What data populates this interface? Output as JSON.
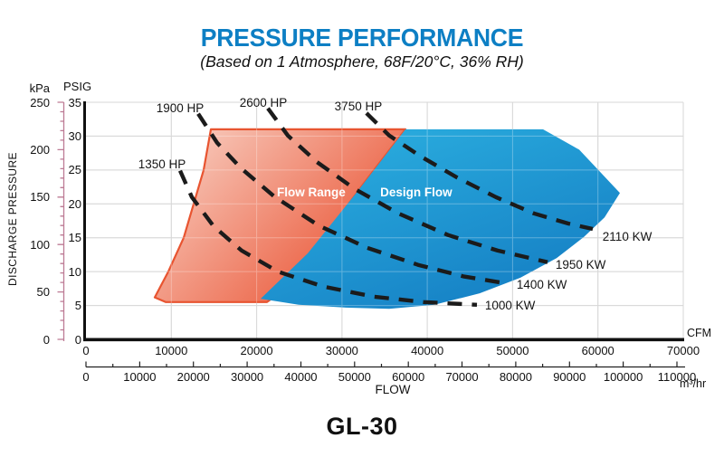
{
  "header": {
    "title": "PRESSURE PERFORMANCE",
    "subtitle": "(Based on 1 Atmosphere, 68F/20°C, 36% RH)",
    "model": "GL-30"
  },
  "colors": {
    "title_blue": "#0d7fc4",
    "flow_range_start": "#f9d7cb",
    "flow_range_end": "#ea5232",
    "flow_range_border": "#e85430",
    "design_flow_start": "#2db3e2",
    "design_flow_end": "#157fc4",
    "curve_dash": "#1b1b1b",
    "grid": "#c6c6c6",
    "kpa_ruler": "#bd7b95",
    "axis": "#111111"
  },
  "chart_data": {
    "type": "area",
    "title": "PRESSURE PERFORMANCE",
    "subtitle": "(Based on 1 Atmosphere, 68F/20°C, 36% RH)",
    "grid": true,
    "x_axis": {
      "label": "FLOW",
      "scales": [
        {
          "name": "CFM",
          "min": 0,
          "max": 70000,
          "ticks": [
            0,
            10000,
            20000,
            30000,
            40000,
            50000,
            60000,
            70000
          ]
        },
        {
          "name": "m³/hr",
          "min": 0,
          "max": 110000,
          "minor_step": 5000,
          "ticks": [
            0,
            10000,
            20000,
            30000,
            40000,
            50000,
            60000,
            70000,
            80000,
            90000,
            100000,
            110000
          ]
        }
      ]
    },
    "y_axis": {
      "label": "DISCHARGE PRESSURE",
      "scales": [
        {
          "name": "kPa",
          "min": 0,
          "max": 250,
          "minor_step": 10,
          "ticks": [
            0,
            50,
            100,
            150,
            200,
            250
          ]
        },
        {
          "name": "PSIG",
          "min": 0,
          "max": 35,
          "ticks": [
            0,
            5,
            10,
            15,
            20,
            25,
            30,
            35
          ]
        }
      ]
    },
    "regions": [
      {
        "label": "Flow Range",
        "label_anchor": [
          26400,
          21.5
        ],
        "points_cfm_psig": [
          [
            8060,
            6.2
          ],
          [
            9650,
            10
          ],
          [
            11450,
            15
          ],
          [
            12620,
            20
          ],
          [
            13790,
            25
          ],
          [
            14640,
            31
          ],
          [
            37440,
            31
          ],
          [
            33090,
            23.9
          ],
          [
            28640,
            16.4
          ],
          [
            24920,
            10.7
          ],
          [
            21740,
            6
          ],
          [
            21210,
            5.5
          ],
          [
            9330,
            5.5
          ]
        ]
      },
      {
        "label": "Design Flow",
        "label_anchor": [
          38700,
          21.5
        ],
        "points_cfm_psig": [
          [
            20470,
            6
          ],
          [
            26000,
            12.7
          ],
          [
            31920,
            22
          ],
          [
            37440,
            31
          ],
          [
            53560,
            31
          ],
          [
            57800,
            28
          ],
          [
            62580,
            21.6
          ],
          [
            60770,
            18
          ],
          [
            58330,
            15.1
          ],
          [
            55150,
            12
          ],
          [
            50910,
            9.1
          ],
          [
            46140,
            6.8
          ],
          [
            40830,
            5.1
          ],
          [
            35530,
            4.5
          ],
          [
            30230,
            4.7
          ],
          [
            24920,
            5.1
          ]
        ]
      }
    ],
    "curves": [
      {
        "hp_label": "1350 HP",
        "kw_label": "1000 KW",
        "hp_label_anchor": [
          8910,
          25.8
        ],
        "kw_label_anchor": [
          46760,
          4.9
        ],
        "points_cfm_psig": [
          [
            11030,
            24.9
          ],
          [
            12410,
            21
          ],
          [
            14950,
            16.7
          ],
          [
            18240,
            13.1
          ],
          [
            22480,
            10
          ],
          [
            27790,
            7.8
          ],
          [
            33730,
            6.3
          ],
          [
            39560,
            5.5
          ],
          [
            45820,
            5.1
          ]
        ]
      },
      {
        "hp_label": "1900 HP",
        "kw_label": "1400 KW",
        "hp_label_anchor": [
          11030,
          34.1
        ],
        "kw_label_anchor": [
          50470,
          8.0
        ],
        "points_cfm_psig": [
          [
            13150,
            33.3
          ],
          [
            15380,
            29
          ],
          [
            18140,
            25.3
          ],
          [
            22060,
            21.1
          ],
          [
            27260,
            16.8
          ],
          [
            32980,
            13.5
          ],
          [
            38920,
            11
          ],
          [
            44230,
            9.3
          ],
          [
            48570,
            8.4
          ]
        ]
      },
      {
        "hp_label": "2600 HP",
        "kw_label": "1950 KW",
        "hp_label_anchor": [
          20790,
          34.9
        ],
        "kw_label_anchor": [
          55030,
          11.0
        ],
        "points_cfm_psig": [
          [
            21320,
            34.1
          ],
          [
            23650,
            30.1
          ],
          [
            27050,
            26.2
          ],
          [
            31500,
            22.2
          ],
          [
            36590,
            18.6
          ],
          [
            42420,
            15.4
          ],
          [
            48250,
            13.1
          ],
          [
            54090,
            11.4
          ]
        ]
      },
      {
        "hp_label": "3750 HP",
        "kw_label": "2110 KW",
        "hp_label_anchor": [
          31920,
          34.3
        ],
        "kw_label_anchor": [
          60540,
          15.1
        ],
        "points_cfm_psig": [
          [
            32870,
            33.4
          ],
          [
            35530,
            30.1
          ],
          [
            39240,
            27
          ],
          [
            43480,
            23.9
          ],
          [
            48040,
            21
          ],
          [
            52490,
            18.6
          ],
          [
            56520,
            17.1
          ],
          [
            59390,
            16.3
          ]
        ]
      }
    ]
  }
}
